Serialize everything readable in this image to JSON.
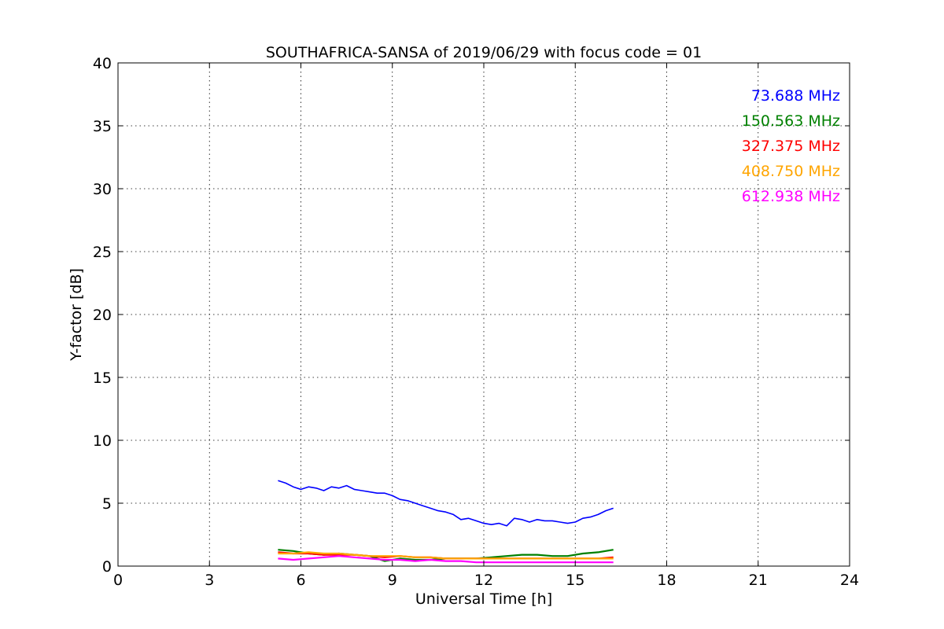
{
  "chart_data": {
    "type": "line",
    "title": "SOUTHAFRICA-SANSA of 2019/06/29 with focus code = 01",
    "xlabel": "Universal Time [h]",
    "ylabel": "Y-factor [dB]",
    "xlim": [
      0,
      24
    ],
    "ylim": [
      0,
      40
    ],
    "xticks": [
      0,
      3,
      6,
      9,
      12,
      15,
      18,
      21,
      24
    ],
    "yticks": [
      0,
      5,
      10,
      15,
      20,
      25,
      30,
      35,
      40
    ],
    "grid": true,
    "legend_position": "top-right",
    "series": [
      {
        "name": "73.688 MHz",
        "color": "#0000ff",
        "x": [
          5.25,
          5.5,
          5.75,
          6.0,
          6.25,
          6.5,
          6.75,
          7.0,
          7.25,
          7.5,
          7.75,
          8.0,
          8.25,
          8.5,
          8.75,
          9.0,
          9.25,
          9.5,
          9.75,
          10.0,
          10.25,
          10.5,
          10.75,
          11.0,
          11.25,
          11.5,
          11.75,
          12.0,
          12.25,
          12.5,
          12.75,
          13.0,
          13.25,
          13.5,
          13.75,
          14.0,
          14.25,
          14.5,
          14.75,
          15.0,
          15.25,
          15.5,
          15.75,
          16.0,
          16.25
        ],
        "y": [
          6.8,
          6.6,
          6.3,
          6.1,
          6.3,
          6.2,
          6.0,
          6.3,
          6.2,
          6.4,
          6.1,
          6.0,
          5.9,
          5.8,
          5.8,
          5.6,
          5.3,
          5.2,
          5.0,
          4.8,
          4.6,
          4.4,
          4.3,
          4.1,
          3.7,
          3.8,
          3.6,
          3.4,
          3.3,
          3.4,
          3.2,
          3.8,
          3.7,
          3.5,
          3.7,
          3.6,
          3.6,
          3.5,
          3.4,
          3.5,
          3.8,
          3.9,
          4.1,
          4.4,
          4.6
        ]
      },
      {
        "name": "150.563 MHz",
        "color": "#008000",
        "x": [
          5.25,
          5.75,
          6.25,
          6.75,
          7.25,
          7.75,
          8.25,
          8.75,
          9.25,
          9.75,
          10.25,
          10.75,
          11.25,
          11.75,
          12.25,
          12.75,
          13.25,
          13.75,
          14.25,
          14.75,
          15.25,
          15.75,
          16.25
        ],
        "y": [
          1.3,
          1.2,
          1.0,
          0.9,
          1.0,
          0.9,
          0.8,
          0.4,
          0.6,
          0.5,
          0.5,
          0.6,
          0.6,
          0.6,
          0.7,
          0.8,
          0.9,
          0.9,
          0.8,
          0.8,
          1.0,
          1.1,
          1.3
        ]
      },
      {
        "name": "327.375 MHz",
        "color": "#ff0000",
        "x": [
          5.25,
          5.75,
          6.25,
          6.75,
          7.25,
          7.75,
          8.25,
          8.75,
          9.25,
          9.75,
          10.25,
          10.75,
          11.25,
          11.75,
          12.25,
          12.75,
          13.25,
          13.75,
          14.25,
          14.75,
          15.25,
          15.75,
          16.25
        ],
        "y": [
          1.1,
          1.0,
          1.0,
          0.9,
          0.9,
          0.9,
          0.8,
          0.7,
          0.8,
          0.7,
          0.7,
          0.6,
          0.6,
          0.6,
          0.6,
          0.6,
          0.6,
          0.6,
          0.6,
          0.6,
          0.6,
          0.6,
          0.7
        ]
      },
      {
        "name": "408.750 MHz",
        "color": "#ffa500",
        "x": [
          5.25,
          5.75,
          6.25,
          6.75,
          7.25,
          7.75,
          8.25,
          8.75,
          9.25,
          9.75,
          10.25,
          10.75,
          11.25,
          11.75,
          12.25,
          12.75,
          13.25,
          13.75,
          14.25,
          14.75,
          15.25,
          15.75,
          16.25
        ],
        "y": [
          1.0,
          1.0,
          1.1,
          1.0,
          1.0,
          0.9,
          0.8,
          0.8,
          0.8,
          0.7,
          0.7,
          0.6,
          0.6,
          0.6,
          0.6,
          0.6,
          0.6,
          0.6,
          0.6,
          0.6,
          0.6,
          0.6,
          0.6
        ]
      },
      {
        "name": "612.938 MHz",
        "color": "#ff00ff",
        "x": [
          5.25,
          5.75,
          6.25,
          6.75,
          7.25,
          7.75,
          8.25,
          8.75,
          9.25,
          9.75,
          10.25,
          10.75,
          11.25,
          11.75,
          12.25,
          12.75,
          13.25,
          13.75,
          14.25,
          14.75,
          15.25,
          15.75,
          16.25
        ],
        "y": [
          0.6,
          0.5,
          0.6,
          0.7,
          0.8,
          0.7,
          0.6,
          0.5,
          0.5,
          0.4,
          0.5,
          0.4,
          0.4,
          0.3,
          0.3,
          0.3,
          0.3,
          0.3,
          0.3,
          0.3,
          0.3,
          0.3,
          0.3
        ]
      }
    ]
  }
}
